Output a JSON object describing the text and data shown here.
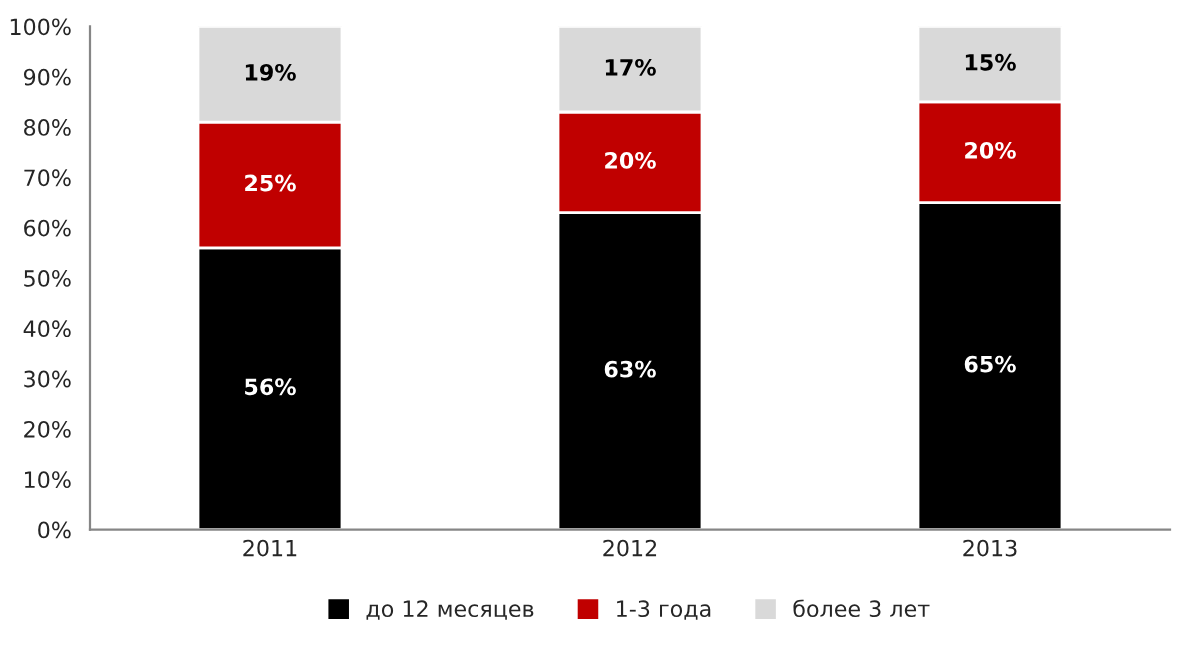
{
  "chart_data": {
    "type": "bar",
    "stacked": true,
    "categories": [
      "2011",
      "2012",
      "2013"
    ],
    "series": [
      {
        "name": "до 12 месяцев",
        "color": "#000000",
        "values": [
          56,
          63,
          65
        ],
        "value_labels": [
          "56%",
          "63%",
          "65%"
        ]
      },
      {
        "name": "1-3 года",
        "color": "#c00000",
        "values": [
          25,
          20,
          20
        ],
        "value_labels": [
          "25%",
          "20%",
          "20%"
        ]
      },
      {
        "name": "более 3 лет",
        "color": "#d9d9d9",
        "values": [
          19,
          17,
          15
        ],
        "value_labels": [
          "19%",
          "17%",
          "15%"
        ]
      }
    ],
    "ylim": [
      0,
      100
    ],
    "yticks": [
      {
        "value": 0,
        "label": "0%"
      },
      {
        "value": 10,
        "label": "10%"
      },
      {
        "value": 20,
        "label": "20%"
      },
      {
        "value": 30,
        "label": "30%"
      },
      {
        "value": 40,
        "label": "40%"
      },
      {
        "value": 50,
        "label": "50%"
      },
      {
        "value": 60,
        "label": "60%"
      },
      {
        "value": 70,
        "label": "70%"
      },
      {
        "value": 80,
        "label": "80%"
      },
      {
        "value": 90,
        "label": "90%"
      },
      {
        "value": 100,
        "label": "100%"
      }
    ],
    "grid": false,
    "legend": "bottom"
  }
}
